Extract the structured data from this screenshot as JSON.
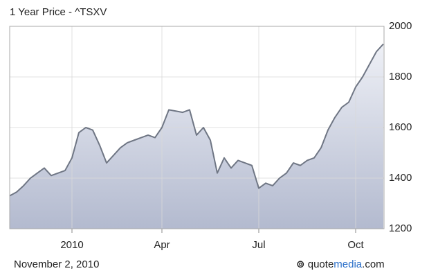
{
  "chart_data": {
    "type": "line",
    "title": "1 Year Price - ^TSXV",
    "date_label": "November 2, 2010",
    "source": [
      "quote",
      "media",
      ".com"
    ],
    "categories": [
      null,
      null,
      null,
      null,
      null,
      null,
      null,
      null,
      null,
      "2010",
      null,
      null,
      null,
      null,
      null,
      null,
      null,
      null,
      null,
      null,
      null,
      null,
      "Apr",
      null,
      null,
      null,
      null,
      null,
      null,
      null,
      null,
      null,
      null,
      null,
      null,
      null,
      "Jul",
      null,
      null,
      null,
      null,
      null,
      null,
      null,
      null,
      null,
      null,
      null,
      null,
      null,
      "Oct",
      null,
      null,
      null,
      null
    ],
    "values": [
      1330,
      1345,
      1370,
      1400,
      1420,
      1440,
      1410,
      1420,
      1430,
      1480,
      1580,
      1600,
      1590,
      1530,
      1460,
      1490,
      1520,
      1540,
      1550,
      1560,
      1570,
      1560,
      1600,
      1670,
      1665,
      1660,
      1670,
      1570,
      1600,
      1550,
      1420,
      1480,
      1440,
      1470,
      1460,
      1450,
      1360,
      1380,
      1370,
      1400,
      1420,
      1460,
      1450,
      1470,
      1480,
      1520,
      1590,
      1640,
      1680,
      1700,
      1760,
      1800,
      1850,
      1900,
      1930
    ],
    "color": "#6f7684",
    "ylim": [
      1200,
      2000
    ],
    "yticks": [
      1200,
      1400,
      1600,
      1800,
      2000
    ],
    "grid": true
  }
}
